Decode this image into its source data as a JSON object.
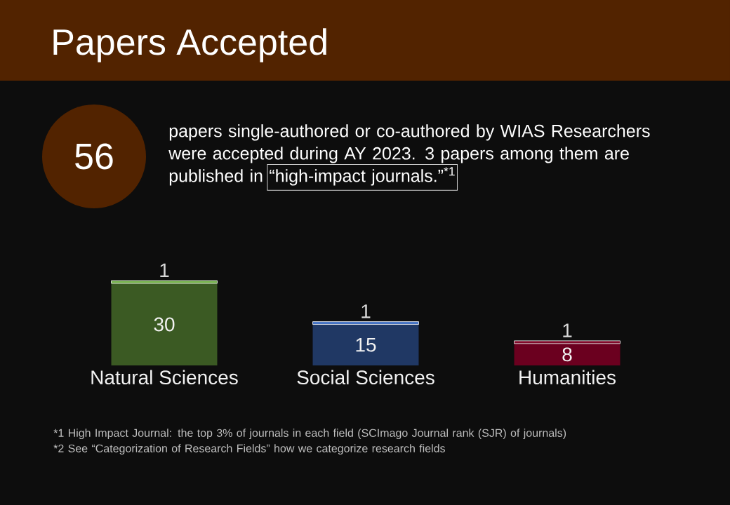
{
  "chart_data": {
    "type": "bar",
    "title": "Papers Accepted",
    "categories": [
      "Natural Sciences",
      "Social Sciences",
      "Humanities"
    ],
    "stacked": true,
    "series": [
      {
        "colors": [
          "#3b5a23",
          "#203864",
          "#6b001f"
        ],
        "values": [
          30,
          15,
          8
        ]
      },
      {
        "colors": [
          "#70ad47",
          "#4472c4",
          "#7f0a2a"
        ],
        "values": [
          1,
          1,
          1
        ]
      }
    ],
    "data_labels": true,
    "annotations": [
      "56",
      "papers single-authored or co-authored by WIAS Researchers were accepted during AY 2023. 3 papers among them are",
      "published in",
      "“high-impact journals.”$^{*1}$",
      "*1 High Impact Journal: the top 3% of journals in each field (SCImago Journal rank (SJR) of journals)",
      "*2 See “Categorization of Research Fields” how we categorize research fields"
    ]
  }
}
